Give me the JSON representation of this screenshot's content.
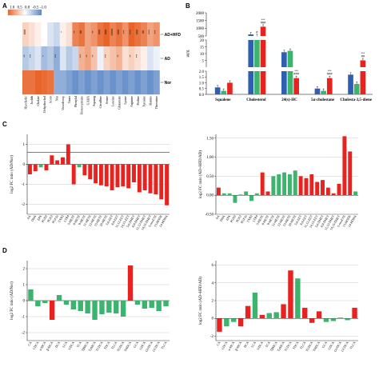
{
  "panels": {
    "A": "A",
    "B": "B",
    "C": "C",
    "D": "D"
  },
  "colors": {
    "red": "#e8231f",
    "green": "#3cb46e",
    "blue": "#2f5fb0",
    "lightred": "#f08a8a",
    "lightgreen": "#8fd5a8",
    "orange": "#e8642a",
    "heatblue": "#5b86c5"
  },
  "chart_data": [
    {
      "id": "A",
      "type": "heatmap",
      "legend_ticks": [
        "1.0",
        "0.5",
        "0.0",
        "-0.5",
        "-1.0"
      ],
      "rows": [
        "AD+HFD",
        "AD",
        "Nor"
      ],
      "columns": [
        "Hyocholic",
        "Isolith",
        "Cholate",
        "Dehydrochol",
        "Aceto",
        "Nor",
        "Ursodeoxy",
        "Tauro",
        "Phenylal",
        "Homocysteine",
        "GABA",
        "Asparag",
        "Citrulline",
        "Serine",
        "Leucine",
        "Glutamate",
        "Lysine",
        "Arginine",
        "Proline",
        "Tyrosine",
        "Alanine",
        "Threonine"
      ],
      "values": [
        [
          0.3,
          0.2,
          0.1,
          0.0,
          -0.2,
          -0.3,
          0.1,
          0.2,
          0.8,
          0.9,
          0.6,
          0.7,
          0.9,
          1.0,
          0.8,
          0.9,
          0.7,
          1.0,
          0.9,
          0.8,
          0.6,
          0.7
        ],
        [
          -0.4,
          -0.3,
          -0.2,
          -0.5,
          -0.4,
          -0.6,
          -0.2,
          -0.4,
          -0.3,
          0.5,
          0.6,
          0.4,
          -0.1,
          0.3,
          0.4,
          0.5,
          0.2,
          0.3,
          0.2,
          0.1,
          -0.2,
          -0.1
        ],
        [
          0.9,
          0.9,
          1.0,
          0.95,
          0.9,
          -0.6,
          -0.6,
          -0.7,
          -0.8,
          -0.7,
          -0.8,
          -0.7,
          -0.8,
          -0.7,
          -0.8,
          -0.7,
          -0.8,
          -0.7,
          -0.8,
          -0.7,
          -0.8,
          -0.7
        ]
      ],
      "annotations": [
        [
          "###",
          "",
          "",
          "",
          "",
          "",
          "*",
          "",
          "**",
          "##",
          "",
          "**",
          "###",
          "###",
          "####",
          "###",
          "***",
          "****",
          "###",
          "##",
          "****",
          "***"
        ],
        [
          "**",
          "***",
          "",
          "*",
          "",
          "***",
          "",
          "",
          "",
          "***",
          "**",
          "**",
          "",
          "***",
          "",
          "**",
          "",
          "**",
          "***",
          "",
          "",
          ""
        ],
        [
          "",
          "",
          "",
          "",
          "",
          "",
          "",
          "",
          "",
          "",
          "",
          "",
          "",
          "",
          "",
          "",
          "",
          "",
          "",
          "",
          "",
          ""
        ]
      ]
    },
    {
      "id": "B",
      "type": "bar",
      "ylabel": "μg/g",
      "categories": [
        "Squalene",
        "Cholesterol",
        "24(s)-HC",
        "5α-cholestane",
        "Cholesta-3,5-diene"
      ],
      "series": [
        {
          "name": "Nor",
          "color": "#2f5fb0",
          "values": [
            0.6,
            600,
            11,
            0.5,
            1.7
          ]
        },
        {
          "name": "AD",
          "color": "#3cb46e",
          "values": [
            0.3,
            480,
            12,
            0.3,
            0.9
          ]
        },
        {
          "name": "AD+HFD",
          "color": "#e8231f",
          "values": [
            1.0,
            1100,
            1.4,
            1.4,
            5.0
          ]
        }
      ],
      "y_tick_labels": [
        "0.0",
        "0.5",
        "1.0",
        "1.5",
        "2.0",
        "5",
        "10",
        "15",
        "20",
        "500",
        "1000",
        "1500",
        "2000"
      ],
      "annotations": [
        {
          "category": "Cholesterol",
          "text": "***\n###"
        },
        {
          "category": "Cholesterol",
          "text": "#"
        },
        {
          "category": "24(s)-HC",
          "text": "***\n###"
        },
        {
          "category": "5α-cholestane",
          "text": "***\n###"
        },
        {
          "category": "Cholesta-3,5-diene",
          "text": "***\n##"
        }
      ]
    },
    {
      "id": "C-left",
      "type": "bar",
      "ylabel": "log2 FC ratio (AD/Nor)",
      "ylim": [
        -2.5,
        1.5
      ],
      "y_ticks": [
        -2,
        -1,
        0,
        1
      ],
      "categories": [
        "AA",
        "DHA",
        "EPA",
        "PGD2",
        "PGE2",
        "PGF2a",
        "TXB2",
        "LTB4",
        "5-HETE",
        "8-HETE",
        "9-HETE",
        "11-HETE",
        "12-HETE",
        "15-HETE",
        "20-HETE",
        "5,6-EET",
        "8,9-EET",
        "11,12-EET",
        "14,15-EET",
        "5,6-DHET",
        "8,9-DHET",
        "11,12-DHET",
        "14,15-DHET",
        "5-oxoETE",
        "13-HODE",
        "14-HDHA"
      ],
      "values": [
        -0.5,
        -0.35,
        -0.15,
        -0.3,
        0.45,
        0.2,
        0.35,
        1.0,
        -1.0,
        -0.15,
        -0.55,
        -0.75,
        -0.95,
        -1.05,
        -1.1,
        -1.3,
        -1.15,
        -1.1,
        -1.2,
        -0.9,
        -1.4,
        -1.3,
        -1.45,
        -1.5,
        -1.75,
        -2.05
      ],
      "bar_colors": [
        "red",
        "red",
        "green",
        "red",
        "red",
        "red",
        "red",
        "red",
        "red",
        "green",
        "red",
        "red",
        "red",
        "red",
        "red",
        "red",
        "red",
        "red",
        "red",
        "red",
        "red",
        "red",
        "red",
        "red",
        "red",
        "red"
      ]
    },
    {
      "id": "C-right",
      "type": "bar",
      "ylabel": "log2 FC ratio (AD+HFD/AD)",
      "ylim": [
        -0.5,
        1.6
      ],
      "y_ticks": [
        -0.5,
        0.0,
        0.5,
        1.0,
        1.5
      ],
      "y_tick_labels": [
        "-0.50",
        "0.00",
        "0.50",
        "1.00",
        "1.50"
      ],
      "categories": [
        "AA",
        "DHA",
        "EPA",
        "PGD2",
        "PGE2",
        "PGF2a",
        "TXB2",
        "LTB4",
        "5-HETE",
        "8-HETE",
        "9-HETE",
        "11-HETE",
        "12-HETE",
        "15-HETE",
        "20-HETE",
        "5,6-EET",
        "8,9-EET",
        "11,12-EET",
        "14,15-EET",
        "5,6-DHET",
        "8,9-DHET",
        "11,12-DHET",
        "14,15-DHET",
        "5-oxoETE",
        "13-HODE",
        "14-HDHA"
      ],
      "values": [
        0.2,
        0.05,
        0.05,
        -0.2,
        0.02,
        0.1,
        -0.15,
        0.05,
        0.6,
        0.1,
        0.5,
        0.55,
        0.6,
        0.55,
        0.65,
        0.5,
        0.45,
        0.55,
        0.35,
        0.4,
        0.2,
        0.05,
        0.3,
        1.55,
        1.15,
        0.1
      ],
      "bar_colors": [
        "red",
        "green",
        "green",
        "green",
        "green",
        "green",
        "green",
        "green",
        "red",
        "red",
        "green",
        "green",
        "green",
        "green",
        "green",
        "red",
        "red",
        "red",
        "red",
        "red",
        "red",
        "red",
        "red",
        "red",
        "red",
        "green"
      ]
    },
    {
      "id": "D-left",
      "type": "bar",
      "ylabel": "log2 FC ratio (AD/Nor)",
      "ylim": [
        -2.5,
        2.5
      ],
      "y_ticks": [
        -2,
        -1,
        0,
        1,
        2
      ],
      "categories": [
        "CA",
        "CDCA",
        "α-MCA",
        "β-MCA",
        "DCA",
        "LCA",
        "UDCA",
        "TCA",
        "TβMCA",
        "TαMCA",
        "TCDCA",
        "TDCA",
        "TLCA",
        "TUDCA",
        "THDCA",
        "GCA",
        "GDCA",
        "GUDCA",
        "GCDCA",
        "TLCA"
      ],
      "values": [
        0.7,
        -0.35,
        -0.15,
        -1.2,
        0.35,
        -0.25,
        -0.55,
        -0.65,
        -0.8,
        -1.2,
        -0.85,
        -0.75,
        -0.8,
        -1.0,
        2.2,
        -0.25,
        -0.5,
        -0.45,
        -0.65,
        -0.35
      ],
      "bar_colors": [
        "green",
        "green",
        "green",
        "red",
        "green",
        "green",
        "green",
        "green",
        "green",
        "green",
        "green",
        "green",
        "green",
        "green",
        "red",
        "green",
        "green",
        "green",
        "green",
        "green"
      ]
    },
    {
      "id": "D-right",
      "type": "bar",
      "ylabel": "log2 FC ratio (AD+HFD/AD)",
      "ylim": [
        -2.5,
        6.5
      ],
      "y_ticks": [
        -2,
        0,
        2,
        4,
        6
      ],
      "categories": [
        "CA",
        "CDCA",
        "α-MCA",
        "β-MCA",
        "DCA",
        "LCA",
        "UDCA",
        "TCA",
        "TβMCA",
        "TαMCA",
        "TCDCA",
        "TDCA",
        "TLCA",
        "TUDCA",
        "THDCA",
        "GCA",
        "GDCA",
        "GUDCA",
        "GCDCA",
        "TLCA"
      ],
      "values": [
        -1.5,
        -0.9,
        -0.4,
        -0.9,
        1.4,
        2.9,
        0.4,
        0.6,
        0.7,
        1.6,
        5.4,
        4.5,
        1.2,
        -0.5,
        0.8,
        -0.4,
        -0.3,
        0.1,
        -0.2,
        1.2
      ],
      "bar_colors": [
        "red",
        "green",
        "green",
        "red",
        "red",
        "green",
        "red",
        "green",
        "green",
        "red",
        "red",
        "green",
        "red",
        "red",
        "red",
        "green",
        "green",
        "green",
        "green",
        "red"
      ]
    }
  ]
}
